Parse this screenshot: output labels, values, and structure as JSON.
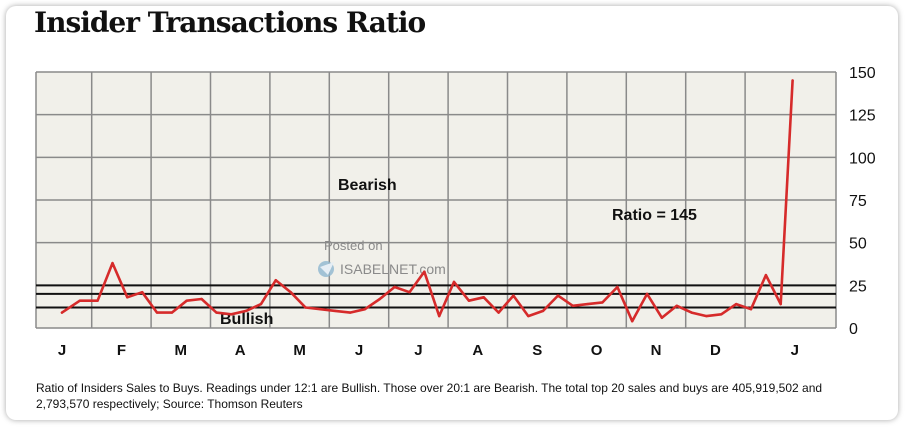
{
  "chart_data": {
    "type": "line",
    "title": "Insider Transactions Ratio",
    "caption": "Ratio of Insiders Sales to Buys. Readings under 12:1 are Bullish. Those over 20:1 are Bearish. The total top 20 sales and buys are 405,919,502 and 2,793,570 respectively; Source: Thomson Reuters",
    "ylim": [
      0,
      150
    ],
    "yticks": [
      "0",
      "25",
      "50",
      "75",
      "100",
      "125",
      "150"
    ],
    "months": [
      "J",
      "F",
      "M",
      "A",
      "M",
      "J",
      "J",
      "A",
      "S",
      "O",
      "N",
      "D",
      "J"
    ],
    "thresholds": {
      "bullish": 12,
      "bearish": 20,
      "upper": 25
    },
    "annotations": {
      "bearish": "Bearish",
      "bullish": "Bullish",
      "ratio": "Ratio = 145"
    },
    "watermark": {
      "line1": "Posted on",
      "line2": "ISABELNET.com"
    },
    "series": [
      {
        "color": "#d62b2b",
        "x": [
          0,
          0.3,
          0.6,
          0.85,
          1.1,
          1.35,
          1.6,
          1.85,
          2.1,
          2.35,
          2.6,
          2.85,
          3.1,
          3.35,
          3.6,
          3.85,
          4.1,
          4.35,
          4.6,
          4.85,
          5.1,
          5.35,
          5.6,
          5.85,
          6.1,
          6.35,
          6.6,
          6.85,
          7.1,
          7.35,
          7.6,
          7.85,
          8.1,
          8.35,
          8.6,
          8.85,
          9.1,
          9.35,
          9.6,
          9.85,
          10.1,
          10.35,
          10.6,
          10.85,
          11.1,
          11.35,
          11.6,
          11.85,
          12.1,
          12.3
        ],
        "y": [
          9,
          16,
          16,
          38,
          18,
          21,
          9,
          9,
          16,
          17,
          9,
          8,
          10,
          14,
          28,
          21,
          12,
          11,
          10,
          9,
          11,
          17,
          24,
          21,
          33,
          7,
          27,
          16,
          18,
          9,
          19,
          7,
          10,
          19,
          13,
          14,
          15,
          24,
          4,
          20,
          6,
          13,
          9,
          7,
          8,
          14,
          11,
          31,
          14,
          145
        ]
      }
    ]
  }
}
